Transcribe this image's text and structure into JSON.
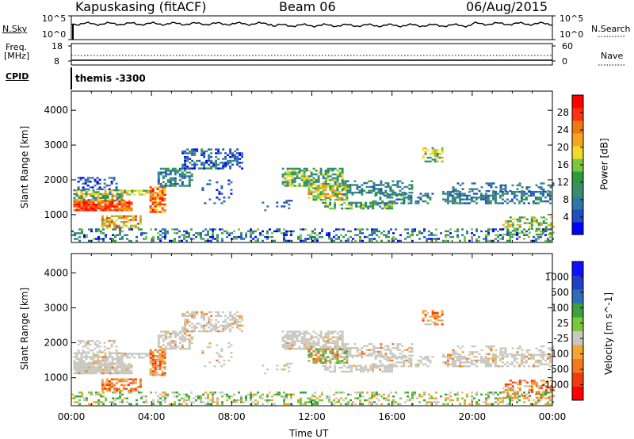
{
  "header": {
    "station": "Kapuskasing (fitACF)",
    "beam": "Beam 06",
    "date": "06/Aug/2015"
  },
  "nsky_panel": {
    "left_label": "N.Sky",
    "right_label": "N.Search",
    "left_ticks": [
      "10^5",
      "10^0"
    ],
    "right_ticks": [
      "10^5",
      "10^0"
    ]
  },
  "freq_panel": {
    "left_label_line1": "Freq.",
    "left_label_line2": "[MHz]",
    "left_ticks": [
      "18",
      "8"
    ],
    "right_label": "Nave",
    "right_ticks": [
      "60",
      "0"
    ]
  },
  "cpid": {
    "label": "CPID",
    "value": "themis -3300"
  },
  "chart_data": [
    {
      "type": "heatmap",
      "name": "power",
      "ylabel": "Slant Range [km]",
      "xlabel": "",
      "x_ticks": [
        "00:00",
        "04:00",
        "08:00",
        "12:00",
        "16:00",
        "20:00",
        "00:00"
      ],
      "y_ticks": [
        1000,
        2000,
        3000,
        4000
      ],
      "ylim": [
        200,
        4550
      ],
      "xlim_hours": [
        0,
        24
      ],
      "colorbar": {
        "label": "Power [dB]",
        "ticks": [
          4,
          8,
          12,
          16,
          20,
          24,
          28
        ],
        "range": [
          0,
          32
        ]
      }
    },
    {
      "type": "heatmap",
      "name": "velocity",
      "ylabel": "Slant Range [km]",
      "xlabel": "Time UT",
      "x_ticks": [
        "00:00",
        "04:00",
        "08:00",
        "12:00",
        "16:00",
        "20:00",
        "00:00"
      ],
      "y_ticks": [
        1000,
        2000,
        3000,
        4000
      ],
      "ylim": [
        200,
        4550
      ],
      "xlim_hours": [
        0,
        24
      ],
      "colorbar": {
        "label": "Velocity [m s^-1]",
        "ticks": [
          "1000",
          "500",
          "100",
          "25",
          "-25",
          "-100",
          "-500",
          "-1000"
        ]
      }
    }
  ],
  "colors": {
    "power_scale": [
      "#0000ff",
      "#1f4fbf",
      "#2e78a8",
      "#3c8c6e",
      "#2d9a3c",
      "#78c83c",
      "#f0dc28",
      "#f5a520",
      "#f07814",
      "#ff3210",
      "#ff0000"
    ],
    "velocity_scale": [
      "#ff0000",
      "#f03c0a",
      "#f5781e",
      "#f5a532",
      "#c8c8c0",
      "#78c83c",
      "#3ca03c",
      "#2e6eb4",
      "#2040c8",
      "#1010ff"
    ],
    "ground_scatter": "#c8c8c0"
  }
}
